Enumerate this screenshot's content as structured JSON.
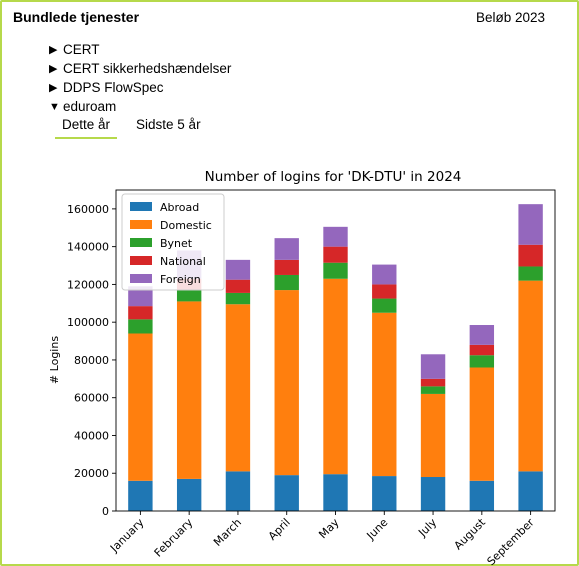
{
  "header": {
    "title": "Bundlede tjenester",
    "right": "Beløb 2023"
  },
  "services": [
    {
      "label": "CERT",
      "expanded": false
    },
    {
      "label": "CERT sikkerhedshændelser",
      "expanded": false
    },
    {
      "label": "DDPS FlowSpec",
      "expanded": false
    },
    {
      "label": "eduroam",
      "expanded": true
    }
  ],
  "tabs": [
    {
      "label": "Dette år",
      "active": true
    },
    {
      "label": "Sidste 5 år",
      "active": false
    }
  ],
  "chart_data": {
    "type": "bar",
    "stacked": true,
    "title": "Number of logins for 'DK-DTU' in 2024",
    "xlabel": "",
    "ylabel": "# Logins",
    "ylim": [
      0,
      170000
    ],
    "yticks": [
      0,
      20000,
      40000,
      60000,
      80000,
      100000,
      120000,
      140000,
      160000
    ],
    "categories": [
      "January",
      "February",
      "March",
      "April",
      "May",
      "June",
      "July",
      "August",
      "September"
    ],
    "legend_position": "top-left",
    "series": [
      {
        "name": "Abroad",
        "color": "#1f77b4",
        "values": [
          16000,
          17000,
          21000,
          19000,
          19500,
          18500,
          18000,
          16000,
          21000
        ]
      },
      {
        "name": "Domestic",
        "color": "#ff7f0e",
        "values": [
          78000,
          94000,
          88500,
          98000,
          103500,
          86500,
          44000,
          60000,
          101000
        ]
      },
      {
        "name": "Bynet",
        "color": "#2ca02c",
        "values": [
          7500,
          6000,
          6000,
          8000,
          8500,
          7500,
          4000,
          6500,
          7500
        ]
      },
      {
        "name": "National",
        "color": "#d62728",
        "values": [
          7000,
          6000,
          7000,
          8000,
          8500,
          7500,
          4000,
          5500,
          11500
        ]
      },
      {
        "name": "Foreign",
        "color": "#9467bd",
        "values": [
          10500,
          15000,
          10500,
          11500,
          10500,
          10500,
          13000,
          10500,
          21500
        ]
      }
    ]
  }
}
